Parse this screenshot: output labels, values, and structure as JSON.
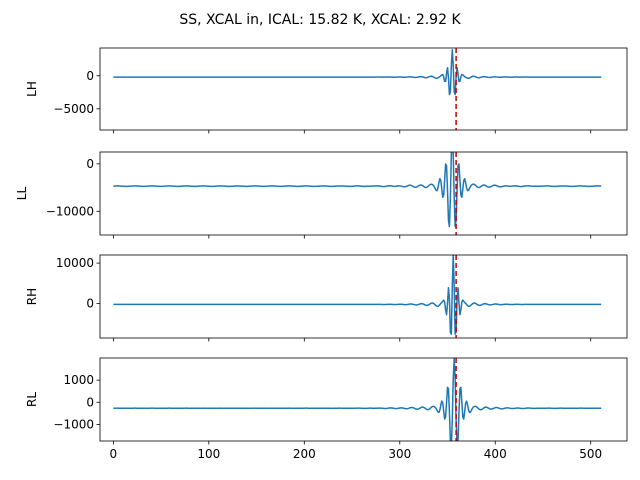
{
  "chart_data": {
    "type": "line",
    "title": "SS, XCAL in, ICAL: 15.82 K, XCAL: 2.92 K",
    "xlabel": "",
    "xlim": [
      -14,
      538
    ],
    "xticks": [
      0,
      100,
      200,
      300,
      400,
      500
    ],
    "grid": false,
    "legend": "none",
    "sample_count": 512,
    "marker_x": 359,
    "subplots": [
      {
        "name": "LH",
        "ylabel": "LH",
        "ylim": [
          -8200,
          4200
        ],
        "yticks": [
          0,
          -5000
        ],
        "ytick_labels": [
          "0",
          "−5000"
        ],
        "baseline": -200,
        "event": {
          "center": 355,
          "width": 4.2,
          "amplitude": 3700,
          "freq": 0.19,
          "decay": 0.055
        },
        "notes": [
          {
            "x": 247,
            "amp": -200
          }
        ]
      },
      {
        "name": "LL",
        "ylabel": "LL",
        "ylim": [
          -15000,
          2500
        ],
        "yticks": [
          0,
          -10000
        ],
        "ytick_labels": [
          "0",
          "−10000"
        ],
        "baseline": -4700,
        "event": {
          "center": 355,
          "width": 6.5,
          "amplitude": 9800,
          "freq": 0.15,
          "decay": 0.045
        }
      },
      {
        "name": "RH",
        "ylabel": "RH",
        "ylim": [
          -8500,
          12000
        ],
        "yticks": [
          10000,
          0
        ],
        "ytick_labels": [
          "10000",
          "0"
        ],
        "baseline": -200,
        "event": {
          "center": 356,
          "width": 4.0,
          "amplitude": 11000,
          "freq": 0.2,
          "decay": 0.06
        }
      },
      {
        "name": "RL",
        "ylabel": "RL",
        "ylim": [
          -1750,
          2000
        ],
        "yticks": [
          1000,
          0,
          -1000
        ],
        "ytick_labels": [
          "1000",
          "0",
          "−1000"
        ],
        "baseline": -270,
        "event": {
          "center": 357,
          "width": 6.5,
          "amplitude": 2000,
          "freq": 0.15,
          "decay": 0.045
        }
      }
    ]
  }
}
